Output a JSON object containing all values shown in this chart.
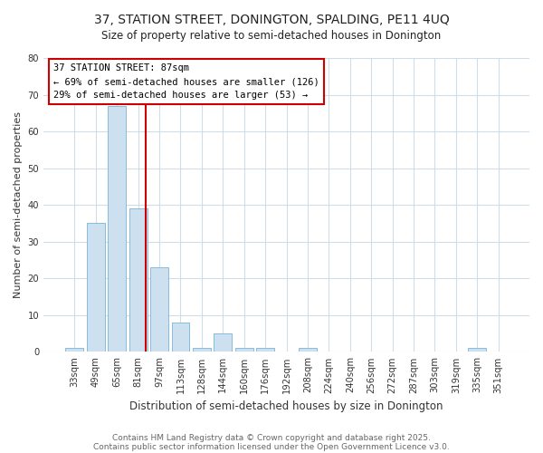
{
  "title1": "37, STATION STREET, DONINGTON, SPALDING, PE11 4UQ",
  "title2": "Size of property relative to semi-detached houses in Donington",
  "xlabel": "Distribution of semi-detached houses by size in Donington",
  "ylabel": "Number of semi-detached properties",
  "bin_labels": [
    "33sqm",
    "49sqm",
    "65sqm",
    "81sqm",
    "97sqm",
    "113sqm",
    "128sqm",
    "144sqm",
    "160sqm",
    "176sqm",
    "192sqm",
    "208sqm",
    "224sqm",
    "240sqm",
    "256sqm",
    "272sqm",
    "287sqm",
    "303sqm",
    "319sqm",
    "335sqm",
    "351sqm"
  ],
  "bar_heights": [
    1,
    35,
    67,
    39,
    23,
    8,
    1,
    5,
    1,
    1,
    0,
    1,
    0,
    0,
    0,
    0,
    0,
    0,
    0,
    1,
    0
  ],
  "bar_color": "#cce0f0",
  "bar_edge_color": "#88bbdd",
  "bar_width": 0.85,
  "red_line_color": "#cc0000",
  "annotation_title": "37 STATION STREET: 87sqm",
  "annotation_line1": "← 69% of semi-detached houses are smaller (126)",
  "annotation_line2": "29% of semi-detached houses are larger (53) →",
  "annotation_box_edge": "#cc0000",
  "ylim": [
    0,
    80
  ],
  "yticks": [
    0,
    10,
    20,
    30,
    40,
    50,
    60,
    70,
    80
  ],
  "footer1": "Contains HM Land Registry data © Crown copyright and database right 2025.",
  "footer2": "Contains public sector information licensed under the Open Government Licence v3.0.",
  "background_color": "#ffffff",
  "plot_bg_color": "#ffffff",
  "grid_color": "#d0dce8"
}
